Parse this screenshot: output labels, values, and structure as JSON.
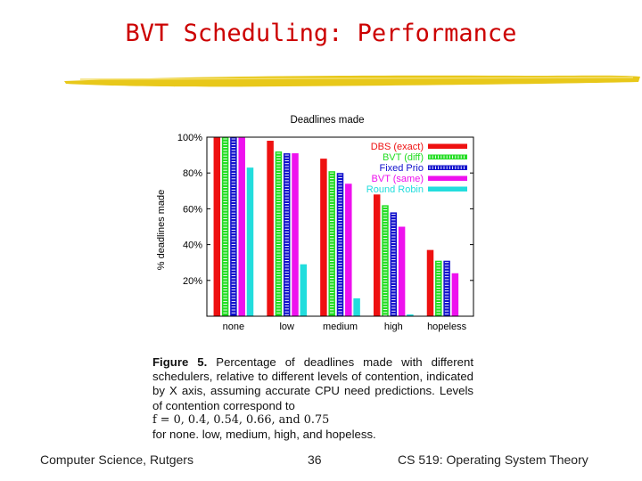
{
  "slide": {
    "title": "BVT Scheduling: Performance",
    "footer_left": "Computer Science, Rutgers",
    "page_number": "36",
    "footer_right": "CS 519: Operating System Theory"
  },
  "caption": {
    "label": "Figure 5.",
    "text_1": " Percentage of deadlines made with different schedulers, relative to different levels of contention, indicated by X axis, assuming accurate CPU need predictions. Levels of contention correspond to",
    "formula": "f = 0, 0.4, 0.54, 0.66, and 0.75",
    "text_2": "for none. low, medium, high, and hopeless."
  },
  "colors": {
    "title": "#cc0000",
    "underline": "#e8c81a",
    "series": [
      "#ee1111",
      "#22dd22",
      "#1111cc",
      "#ee11ee",
      "#22dddd"
    ]
  },
  "chart_data": {
    "type": "bar",
    "title": "Deadlines made",
    "xlabel": "",
    "ylabel": "% deadlines made",
    "ylim": [
      0,
      100
    ],
    "yticks": [
      "20%",
      "40%",
      "60%",
      "80%",
      "100%"
    ],
    "categories": [
      "none",
      "low",
      "medium",
      "high",
      "hopeless"
    ],
    "series": [
      {
        "name": "DBS (exact)",
        "values": [
          100,
          98,
          88,
          68,
          37
        ]
      },
      {
        "name": "BVT (diff)",
        "values": [
          100,
          92,
          81,
          62,
          31
        ]
      },
      {
        "name": "Fixed Prio",
        "values": [
          100,
          91,
          80,
          58,
          31
        ]
      },
      {
        "name": "BVT (same)",
        "values": [
          100,
          91,
          74,
          50,
          24
        ]
      },
      {
        "name": "Round Robin",
        "values": [
          83,
          29,
          10,
          1,
          0
        ]
      }
    ],
    "legend_position": "top-right"
  }
}
